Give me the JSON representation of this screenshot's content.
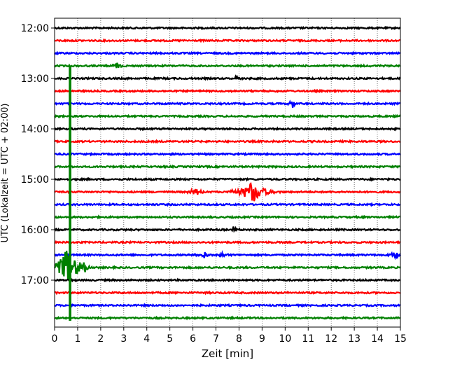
{
  "chart_data": {
    "type": "line",
    "title": "",
    "xlabel": "Zeit  [min]",
    "ylabel": "UTC (Lokalzeit = UTC + 02:00)",
    "xlim": [
      0,
      15
    ],
    "x_ticks": [
      0,
      1,
      2,
      3,
      4,
      5,
      6,
      7,
      8,
      9,
      10,
      11,
      12,
      13,
      14,
      15
    ],
    "y_start_time": "12:00",
    "row_interval_minutes": 15,
    "rows": 24,
    "y_tick_labels": [
      "12:00",
      "13:00",
      "14:00",
      "15:00",
      "16:00",
      "17:00"
    ],
    "grid": "vertical-dotted",
    "series_colors": [
      "#000000",
      "#ff0000",
      "#0000ff",
      "#008000"
    ],
    "events": [
      {
        "row": 3,
        "t": 2.75,
        "amp": 0.35,
        "dur": 0.3
      },
      {
        "row": 4,
        "t": 7.9,
        "amp": 0.3,
        "dur": 0.25
      },
      {
        "row": 6,
        "t": 10.3,
        "amp": 0.5,
        "dur": 0.2
      },
      {
        "row": 13,
        "t": 6.1,
        "amp": 0.3,
        "dur": 0.6
      },
      {
        "row": 13,
        "t": 8.6,
        "amp": 0.9,
        "dur": 1.2
      },
      {
        "row": 16,
        "t": 7.8,
        "amp": 0.3,
        "dur": 0.3
      },
      {
        "row": 18,
        "t": 6.5,
        "amp": 0.3,
        "dur": 0.4
      },
      {
        "row": 18,
        "t": 7.3,
        "amp": 0.3,
        "dur": 0.3
      },
      {
        "row": 18,
        "t": 14.8,
        "amp": 0.4,
        "dur": 0.4
      },
      {
        "row": 19,
        "t": 0.55,
        "amp": 1.6,
        "dur": 1.0
      },
      {
        "row": 19,
        "t": 1.2,
        "amp": 0.5,
        "dur": 0.6
      }
    ],
    "spike": {
      "t": 0.67,
      "from_row": 3,
      "to_row": 23
    }
  }
}
